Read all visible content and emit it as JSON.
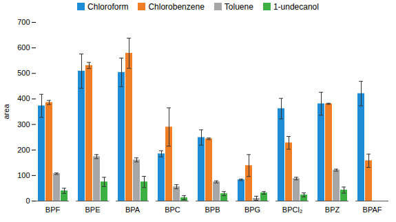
{
  "chart_data": {
    "type": "bar",
    "y_label": "area",
    "categories": [
      "BPF",
      "BPE",
      "BPA",
      "BPC",
      "BPB",
      "BPG",
      "BPCl₂",
      "BPZ",
      "BPAF"
    ],
    "series": [
      {
        "name": "Chloroform",
        "color": "#1f8dd6",
        "values": [
          373,
          509,
          504,
          185,
          249,
          83,
          362,
          381,
          421
        ],
        "errors": [
          45,
          67,
          56,
          12,
          30,
          3,
          40,
          45,
          48
        ]
      },
      {
        "name": "Chlorobenzene",
        "color": "#f07e26",
        "values": [
          386,
          531,
          579,
          290,
          244,
          139,
          228,
          381,
          158
        ],
        "errors": [
          8,
          12,
          59,
          75,
          3,
          43,
          25,
          2,
          26
        ]
      },
      {
        "name": "Toluene",
        "color": "#a6a6a6",
        "values": [
          107,
          174,
          161,
          56,
          75,
          11,
          88,
          121,
          null
        ],
        "errors": [
          3,
          8,
          8,
          8,
          4,
          8,
          5,
          4,
          null
        ]
      },
      {
        "name": "1-undecanol",
        "color": "#3cb043",
        "values": [
          40,
          75,
          75,
          13,
          29,
          32,
          24,
          43,
          null
        ],
        "errors": [
          10,
          18,
          22,
          8,
          8,
          5,
          8,
          12,
          null
        ]
      }
    ],
    "ylim": [
      0,
      700
    ],
    "yticks": [
      0,
      100,
      200,
      300,
      400,
      500,
      600,
      700
    ],
    "grid": false,
    "legend": "top"
  }
}
